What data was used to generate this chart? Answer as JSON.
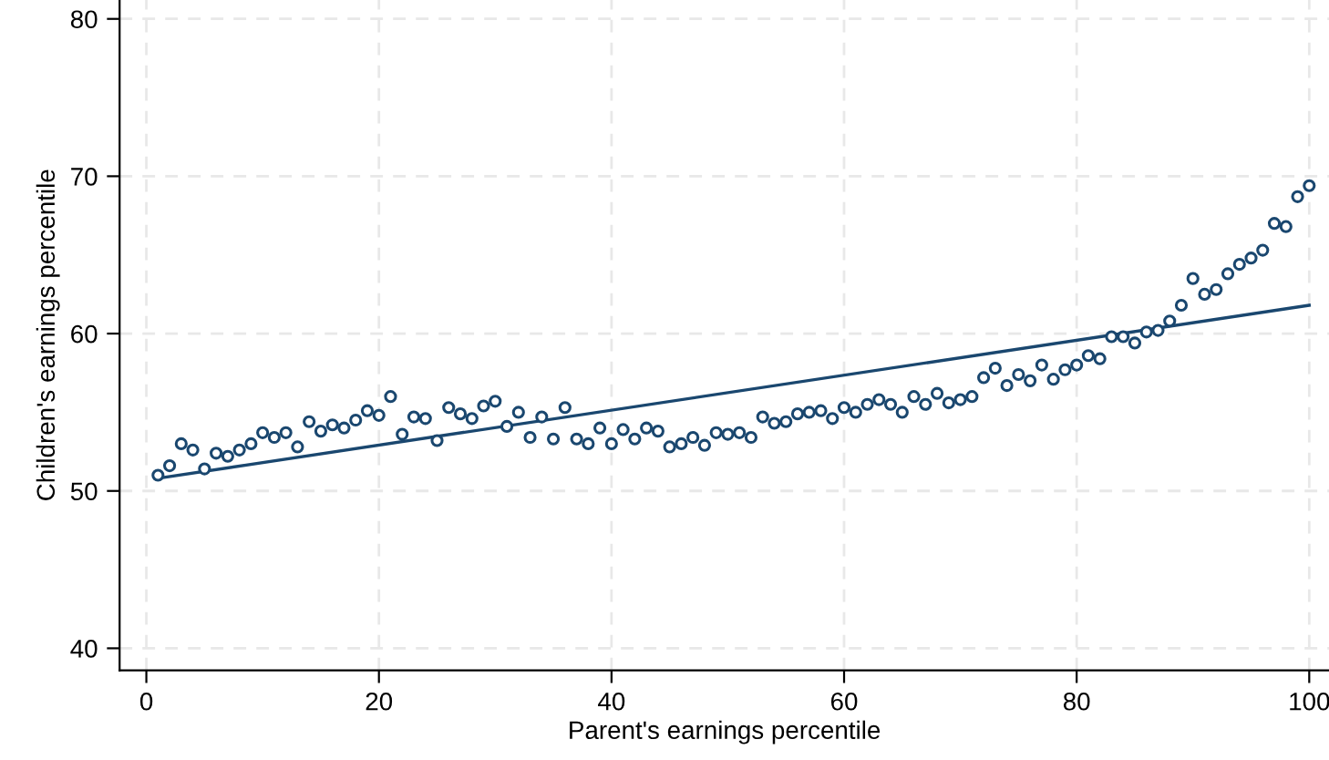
{
  "chart_data": {
    "type": "scatter",
    "xlabel": "Parent's earnings percentile",
    "ylabel": "Children's earnings percentile",
    "xlim": [
      -2.3,
      101.7
    ],
    "ylim": [
      38.6,
      81.2
    ],
    "xticks": [
      0,
      20,
      40,
      60,
      80,
      100
    ],
    "yticks": [
      40,
      50,
      60,
      70,
      80
    ],
    "grid": true,
    "marker": "circle",
    "series": [
      {
        "color": "#1a476f",
        "x": [
          1,
          2,
          3,
          4,
          5,
          6,
          7,
          8,
          9,
          10,
          11,
          12,
          13,
          14,
          15,
          16,
          17,
          18,
          19,
          20,
          21,
          22,
          23,
          24,
          25,
          26,
          27,
          28,
          29,
          30,
          31,
          32,
          33,
          34,
          35,
          36,
          37,
          38,
          39,
          40,
          41,
          42,
          43,
          44,
          45,
          46,
          47,
          48,
          49,
          50,
          51,
          52,
          53,
          54,
          55,
          56,
          57,
          58,
          59,
          60,
          61,
          62,
          63,
          64,
          65,
          66,
          67,
          68,
          69,
          70,
          71,
          72,
          73,
          74,
          75,
          76,
          77,
          78,
          79,
          80,
          81,
          82,
          83,
          84,
          85,
          86,
          87,
          88,
          89,
          90,
          91,
          92,
          93,
          94,
          95,
          96,
          97,
          98,
          99,
          100
        ],
        "values": [
          51.0,
          51.6,
          53.0,
          52.6,
          51.4,
          52.4,
          52.2,
          52.6,
          53.0,
          53.7,
          53.4,
          53.7,
          52.8,
          54.4,
          53.8,
          54.2,
          54.0,
          54.5,
          55.1,
          54.8,
          56.0,
          53.6,
          54.7,
          54.6,
          53.2,
          55.3,
          54.9,
          54.6,
          55.4,
          55.7,
          54.1,
          55.0,
          53.4,
          54.7,
          53.3,
          55.3,
          53.3,
          53.0,
          54.0,
          53.0,
          53.9,
          53.3,
          54.0,
          53.8,
          52.8,
          53.0,
          53.4,
          52.9,
          53.7,
          53.6,
          53.7,
          53.4,
          54.7,
          54.3,
          54.4,
          54.9,
          55.0,
          55.1,
          54.6,
          55.3,
          55.0,
          55.5,
          55.8,
          55.5,
          55.0,
          56.0,
          55.5,
          56.2,
          55.6,
          55.8,
          56.0,
          57.2,
          57.8,
          56.7,
          57.4,
          57.0,
          58.0,
          57.1,
          57.7,
          58.0,
          58.6,
          58.4,
          59.8,
          59.8,
          59.4,
          60.1,
          60.2,
          60.8,
          61.8,
          63.5,
          62.5,
          62.8,
          63.8,
          64.4,
          64.8,
          65.3,
          67.0,
          66.8,
          68.7,
          69.4
        ]
      },
      {
        "type": "line",
        "color": "#1a476f",
        "marker": "none",
        "x": [
          1,
          100
        ],
        "values": [
          50.8,
          61.8
        ]
      }
    ]
  }
}
